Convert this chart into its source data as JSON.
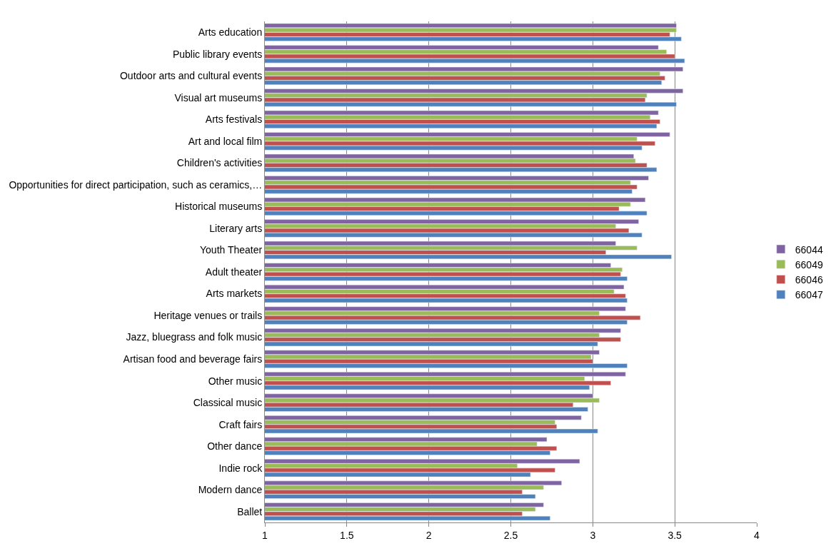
{
  "chart_data": {
    "type": "bar",
    "orientation": "horizontal",
    "categories": [
      "Arts education",
      "Public library events",
      "Outdoor arts and cultural events",
      "Visual art museums",
      "Arts festivals",
      "Art and local film",
      "Children's activities",
      "Opportunities for direct participation, such as ceramics,…",
      "Historical museums",
      "Literary arts",
      "Youth Theater",
      "Adult theater",
      "Arts markets",
      "Heritage venues or trails",
      "Jazz, bluegrass and folk music",
      "Artisan food and beverage fairs",
      "Other music",
      "Classical music",
      "Craft fairs",
      "Other dance",
      "Indie rock",
      "Modern dance",
      "Ballet"
    ],
    "series": [
      {
        "name": "66044",
        "color": "#8064a2",
        "values": [
          3.51,
          3.4,
          3.55,
          3.55,
          3.4,
          3.47,
          3.25,
          3.34,
          3.32,
          3.28,
          3.14,
          3.11,
          3.19,
          3.2,
          3.17,
          3.04,
          3.2,
          3.0,
          2.93,
          2.72,
          2.92,
          2.81,
          2.7
        ]
      },
      {
        "name": "66049",
        "color": "#9bbb59",
        "values": [
          3.51,
          3.45,
          3.41,
          3.33,
          3.35,
          3.27,
          3.26,
          3.23,
          3.23,
          3.14,
          3.27,
          3.18,
          3.13,
          3.04,
          3.04,
          2.99,
          2.95,
          3.04,
          2.77,
          2.66,
          2.54,
          2.7,
          2.65
        ]
      },
      {
        "name": "66046",
        "color": "#c0504d",
        "values": [
          3.47,
          3.5,
          3.44,
          3.32,
          3.41,
          3.38,
          3.33,
          3.27,
          3.16,
          3.22,
          3.08,
          3.17,
          3.2,
          3.29,
          3.17,
          3.0,
          3.11,
          2.88,
          2.78,
          2.78,
          2.77,
          2.57,
          2.57
        ]
      },
      {
        "name": "66047",
        "color": "#4f81bd",
        "values": [
          3.54,
          3.56,
          3.42,
          3.51,
          3.39,
          3.3,
          3.39,
          3.24,
          3.33,
          3.3,
          3.48,
          3.21,
          3.21,
          3.21,
          3.03,
          3.21,
          2.98,
          2.97,
          3.03,
          2.74,
          2.62,
          2.65,
          2.74
        ]
      }
    ],
    "xlim": [
      1,
      4
    ],
    "xticks": [
      1,
      1.5,
      2,
      2.5,
      3,
      3.5,
      4
    ],
    "grid": "x",
    "legend": "right"
  }
}
